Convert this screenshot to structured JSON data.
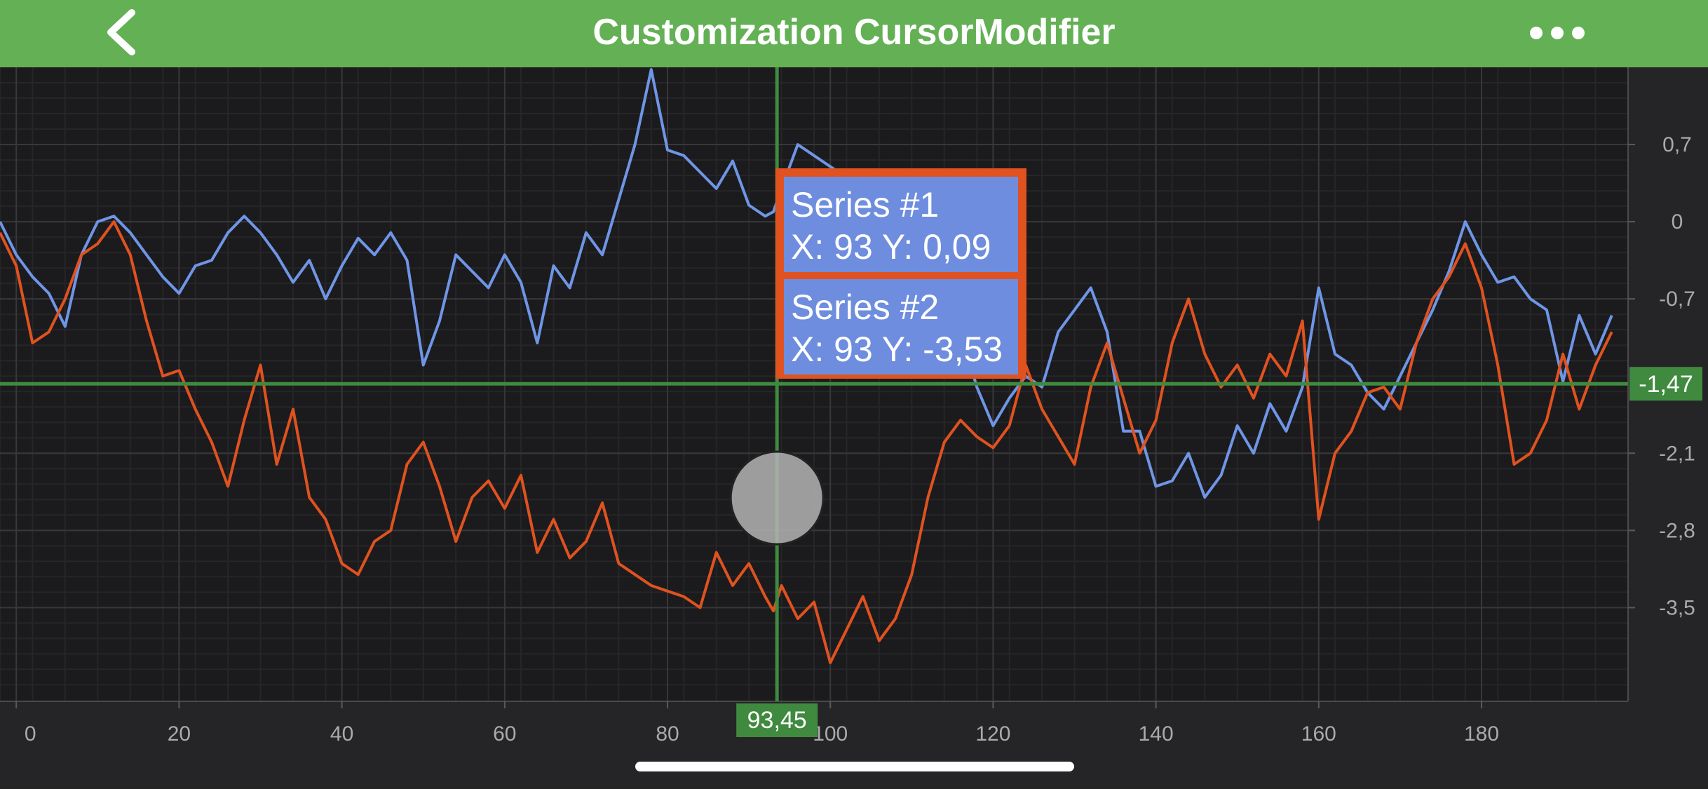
{
  "header": {
    "title": "Customization CursorModifier",
    "back_icon": "chevron-left-icon",
    "more_icon": "ellipsis-icon"
  },
  "colors": {
    "header": "#64b055",
    "plot_background": "#1b1b1d",
    "series_1": "#6f95e6",
    "series_2": "#e0521f",
    "cursor": "#3f8a3f",
    "tooltip_border": "#e0521f",
    "tooltip_fill": "#6e8ddf"
  },
  "chart_data": {
    "type": "line",
    "xlim": [
      -2,
      198
    ],
    "ylim": [
      -4.35,
      1.4
    ],
    "x_ticks": [
      0,
      20,
      40,
      60,
      80,
      100,
      120,
      140,
      160,
      180
    ],
    "x_tick_labels": [
      "0",
      "20",
      "40",
      "60",
      "80",
      "100",
      "120",
      "140",
      "160",
      "180"
    ],
    "y_ticks": [
      0.7,
      0,
      -0.7,
      -2.1,
      -2.8,
      -3.5
    ],
    "y_tick_labels": [
      "0,7",
      "0",
      "-0,7",
      "-2,1",
      "-2,8",
      "-3,5"
    ],
    "grid": true,
    "axis_position": "right",
    "series": [
      {
        "name": "Series #1",
        "x": [
          -2,
          0,
          2,
          4,
          6,
          8,
          10,
          12,
          14,
          16,
          18,
          20,
          22,
          24,
          26,
          28,
          30,
          32,
          34,
          36,
          38,
          40,
          42,
          44,
          46,
          48,
          50,
          52,
          54,
          56,
          58,
          60,
          62,
          64,
          66,
          68,
          70,
          72,
          74,
          76,
          78,
          80,
          82,
          84,
          86,
          88,
          90,
          92,
          93,
          94,
          96,
          98,
          100,
          104,
          108,
          112,
          116,
          118,
          120,
          122,
          124,
          126,
          128,
          130,
          132,
          134,
          136,
          138,
          140,
          142,
          144,
          146,
          148,
          150,
          152,
          154,
          156,
          158,
          160,
          162,
          164,
          166,
          168,
          170,
          172,
          174,
          176,
          178,
          180,
          182,
          184,
          186,
          188,
          190,
          192,
          194,
          196
        ],
        "y": [
          0,
          -0.3,
          -0.5,
          -0.65,
          -0.95,
          -0.3,
          0,
          0.05,
          -0.1,
          -0.3,
          -0.5,
          -0.65,
          -0.4,
          -0.35,
          -0.1,
          0.05,
          -0.1,
          -0.3,
          -0.55,
          -0.35,
          -0.7,
          -0.4,
          -0.15,
          -0.3,
          -0.1,
          -0.35,
          -1.3,
          -0.9,
          -0.3,
          -0.45,
          -0.6,
          -0.3,
          -0.55,
          -1.1,
          -0.4,
          -0.6,
          -0.1,
          -0.3,
          0.2,
          0.7,
          1.38,
          0.65,
          0.6,
          0.45,
          0.3,
          0.55,
          0.15,
          0.05,
          0.09,
          0.3,
          0.7,
          0.6,
          0.5,
          0.3,
          0.0,
          -0.5,
          -1.0,
          -1.5,
          -1.85,
          -1.6,
          -1.4,
          -1.5,
          -1.0,
          -0.8,
          -0.6,
          -1.0,
          -1.9,
          -1.9,
          -2.4,
          -2.35,
          -2.1,
          -2.5,
          -2.3,
          -1.85,
          -2.1,
          -1.65,
          -1.9,
          -1.5,
          -0.6,
          -1.2,
          -1.3,
          -1.55,
          -1.7,
          -1.4,
          -1.1,
          -0.8,
          -0.45,
          0,
          -0.3,
          -0.55,
          -0.5,
          -0.7,
          -0.8,
          -1.45,
          -0.85,
          -1.2,
          -0.85
        ]
      },
      {
        "name": "Series #2",
        "x": [
          -2,
          0,
          2,
          4,
          6,
          8,
          10,
          12,
          14,
          16,
          18,
          20,
          22,
          24,
          26,
          28,
          30,
          32,
          34,
          36,
          38,
          40,
          42,
          44,
          46,
          48,
          50,
          52,
          54,
          56,
          58,
          60,
          62,
          64,
          66,
          68,
          70,
          72,
          74,
          76,
          78,
          80,
          82,
          84,
          86,
          88,
          90,
          92,
          93,
          94,
          96,
          98,
          100,
          104,
          106,
          108,
          110,
          112,
          114,
          116,
          118,
          120,
          122,
          124,
          126,
          128,
          130,
          132,
          134,
          136,
          138,
          140,
          142,
          144,
          146,
          148,
          150,
          152,
          154,
          156,
          158,
          160,
          162,
          164,
          166,
          168,
          170,
          172,
          174,
          176,
          178,
          180,
          182,
          184,
          186,
          188,
          190,
          192,
          194,
          196
        ],
        "y": [
          -0.1,
          -0.4,
          -1.1,
          -1.0,
          -0.7,
          -0.3,
          -0.2,
          0,
          -0.3,
          -0.9,
          -1.4,
          -1.35,
          -1.7,
          -2.0,
          -2.4,
          -1.8,
          -1.3,
          -2.2,
          -1.7,
          -2.5,
          -2.7,
          -3.1,
          -3.2,
          -2.9,
          -2.8,
          -2.2,
          -2.0,
          -2.4,
          -2.9,
          -2.5,
          -2.35,
          -2.6,
          -2.3,
          -3.0,
          -2.7,
          -3.05,
          -2.9,
          -2.55,
          -3.1,
          -3.2,
          -3.3,
          -3.35,
          -3.4,
          -3.5,
          -3.0,
          -3.3,
          -3.1,
          -3.4,
          -3.53,
          -3.3,
          -3.6,
          -3.45,
          -4.0,
          -3.4,
          -3.8,
          -3.6,
          -3.2,
          -2.5,
          -2.0,
          -1.8,
          -1.95,
          -2.05,
          -1.85,
          -1.3,
          -1.7,
          -1.95,
          -2.2,
          -1.5,
          -1.1,
          -1.6,
          -2.1,
          -1.8,
          -1.1,
          -0.7,
          -1.2,
          -1.5,
          -1.3,
          -1.6,
          -1.2,
          -1.4,
          -0.9,
          -2.7,
          -2.1,
          -1.9,
          -1.55,
          -1.5,
          -1.7,
          -1.1,
          -0.7,
          -0.5,
          -0.2,
          -0.6,
          -1.3,
          -2.2,
          -2.1,
          -1.8,
          -1.2,
          -1.7,
          -1.3,
          -1.0
        ]
      }
    ],
    "cursor": {
      "x": 93.45,
      "y": -1.47,
      "x_label": "93,45",
      "y_label": "-1,47"
    },
    "tooltip": [
      {
        "series": "Series #1",
        "values": "X: 93 Y: 0,09"
      },
      {
        "series": "Series #2",
        "values": "X: 93 Y: -3,53"
      }
    ]
  }
}
